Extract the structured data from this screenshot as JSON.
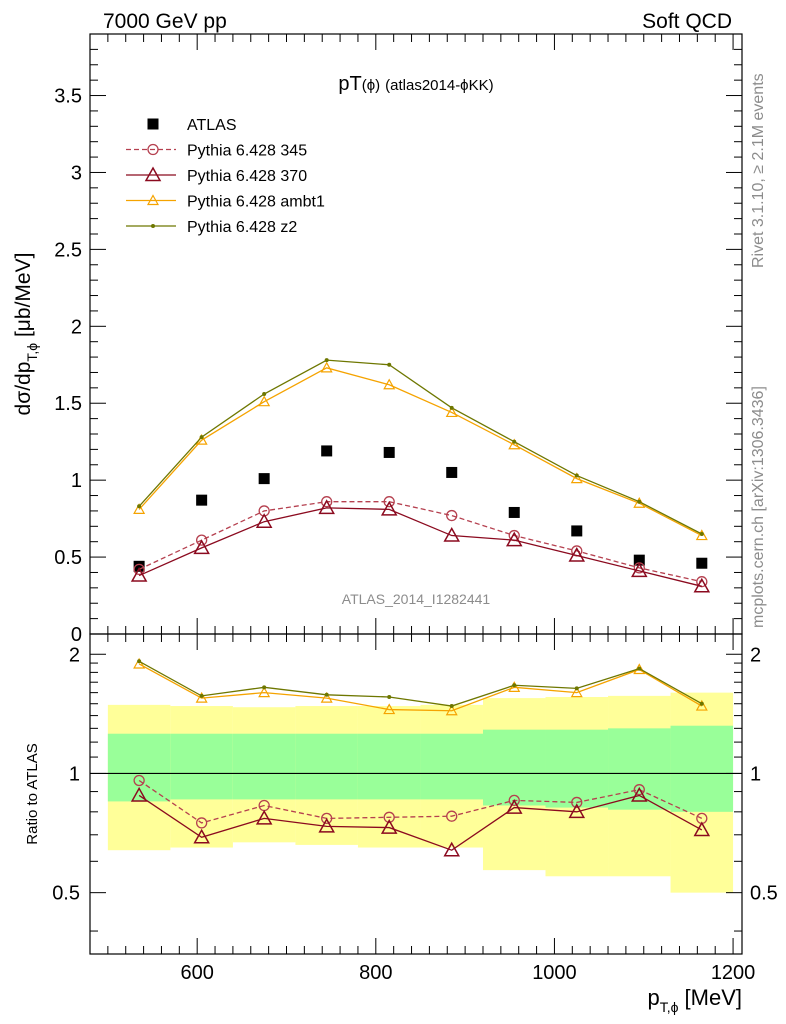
{
  "header": {
    "left": "7000 GeV pp",
    "right": "Soft QCD"
  },
  "side_labels": {
    "rivet": "Rivet 3.1.10, ≥ 2.1M events",
    "mcplots": "mcplots.cern.ch [arXiv:1306.3436]"
  },
  "chart_data": [
    {
      "type": "scatter",
      "title": "pT(ϕ) (atlas2014-ϕKK)",
      "title_parts": {
        "main": "pT",
        "paren": "(ϕ)",
        "rest": "(atlas2014-ϕKK)"
      },
      "ylabel": "dσ/dp_{T,ϕ} [μb/MeV]",
      "ylabel_parts": {
        "a": "dσ/dp",
        "sub": "T,ϕ",
        "b": " [μb/MeV]"
      },
      "xlim": [
        480,
        1210
      ],
      "ylim": [
        0,
        3.9
      ],
      "yticks": [
        0,
        0.5,
        1,
        1.5,
        2,
        2.5,
        3,
        3.5
      ],
      "ytick_labels": [
        "0",
        "0.5",
        "1",
        "1.5",
        "2",
        "2.5",
        "3",
        "3.5"
      ],
      "watermark": "ATLAS_2014_I1282441",
      "legend_position": "top-left",
      "x": [
        535,
        605,
        675,
        745,
        815,
        885,
        955,
        1025,
        1095,
        1165
      ],
      "series": [
        {
          "name": "ATLAS",
          "style": "square",
          "color": "#000000",
          "values": [
            0.44,
            0.87,
            1.01,
            1.19,
            1.18,
            1.05,
            0.79,
            0.67,
            0.48,
            0.46
          ]
        },
        {
          "name": "Pythia 6.428 345",
          "style": "circle-dashed",
          "color": "#b5404f",
          "values": [
            0.42,
            0.61,
            0.8,
            0.86,
            0.86,
            0.77,
            0.64,
            0.54,
            0.43,
            0.34
          ]
        },
        {
          "name": "Pythia 6.428 370",
          "style": "triangle",
          "color": "#8b0a1f",
          "values": [
            0.38,
            0.56,
            0.73,
            0.82,
            0.81,
            0.64,
            0.61,
            0.51,
            0.41,
            0.31
          ]
        },
        {
          "name": "Pythia 6.428 ambt1",
          "style": "triangle-small",
          "color": "#f5a300",
          "values": [
            0.81,
            1.26,
            1.51,
            1.73,
            1.62,
            1.44,
            1.23,
            1.01,
            0.85,
            0.64
          ]
        },
        {
          "name": "Pythia 6.428 z2",
          "style": "dot",
          "color": "#6e7700",
          "values": [
            0.83,
            1.28,
            1.56,
            1.78,
            1.75,
            1.47,
            1.25,
            1.03,
            0.86,
            0.65
          ]
        }
      ]
    },
    {
      "type": "line",
      "title": "",
      "ylabel": "Ratio to ATLAS",
      "xlabel": "p_{T,ϕ} [MeV]",
      "xlabel_parts": {
        "a": "p",
        "sub": "T,ϕ",
        "b": " [MeV]"
      },
      "xlim": [
        480,
        1210
      ],
      "ylim": [
        0.35,
        2.25
      ],
      "xticks": [
        600,
        800,
        1000,
        1200
      ],
      "xtick_labels": [
        "600",
        "800",
        "1000",
        "1200"
      ],
      "yticks": [
        0.5,
        1,
        2
      ],
      "ytick_labels": [
        "0.5",
        "1",
        "2"
      ],
      "bins": [
        [
          500,
          570
        ],
        [
          570,
          640
        ],
        [
          640,
          710
        ],
        [
          710,
          780
        ],
        [
          780,
          850
        ],
        [
          850,
          920
        ],
        [
          920,
          990
        ],
        [
          990,
          1060
        ],
        [
          1060,
          1130
        ],
        [
          1130,
          1200
        ]
      ],
      "band_inner": [
        [
          0.85,
          1.26
        ],
        [
          0.86,
          1.26
        ],
        [
          0.86,
          1.26
        ],
        [
          0.86,
          1.26
        ],
        [
          0.86,
          1.26
        ],
        [
          0.86,
          1.26
        ],
        [
          0.83,
          1.29
        ],
        [
          0.82,
          1.29
        ],
        [
          0.81,
          1.3
        ],
        [
          0.8,
          1.32
        ]
      ],
      "band_outer": [
        [
          0.64,
          1.49
        ],
        [
          0.65,
          1.48
        ],
        [
          0.67,
          1.47
        ],
        [
          0.66,
          1.48
        ],
        [
          0.65,
          1.48
        ],
        [
          0.65,
          1.49
        ],
        [
          0.57,
          1.55
        ],
        [
          0.55,
          1.56
        ],
        [
          0.55,
          1.57
        ],
        [
          0.5,
          1.6
        ]
      ],
      "band_colors": {
        "inner": "#99ff99",
        "outer": "#ffff99"
      },
      "x": [
        535,
        605,
        675,
        745,
        815,
        885,
        955,
        1025,
        1095,
        1165
      ],
      "series": [
        {
          "name": "Pythia 6.428 345",
          "style": "circle-dashed",
          "color": "#b5404f",
          "values": [
            0.96,
            0.75,
            0.83,
            0.77,
            0.775,
            0.78,
            0.855,
            0.845,
            0.91,
            0.77
          ]
        },
        {
          "name": "Pythia 6.428 370",
          "style": "triangle",
          "color": "#8b0a1f",
          "values": [
            0.88,
            0.69,
            0.77,
            0.735,
            0.73,
            0.64,
            0.82,
            0.8,
            0.88,
            0.72
          ]
        },
        {
          "name": "Pythia 6.428 ambt1",
          "style": "triangle-small",
          "color": "#f5a300",
          "values": [
            1.89,
            1.55,
            1.6,
            1.55,
            1.45,
            1.44,
            1.65,
            1.6,
            1.83,
            1.48
          ]
        },
        {
          "name": "Pythia 6.428 z2",
          "style": "dot",
          "color": "#6e7700",
          "values": [
            1.92,
            1.57,
            1.65,
            1.58,
            1.56,
            1.48,
            1.67,
            1.64,
            1.84,
            1.5
          ]
        }
      ]
    }
  ]
}
